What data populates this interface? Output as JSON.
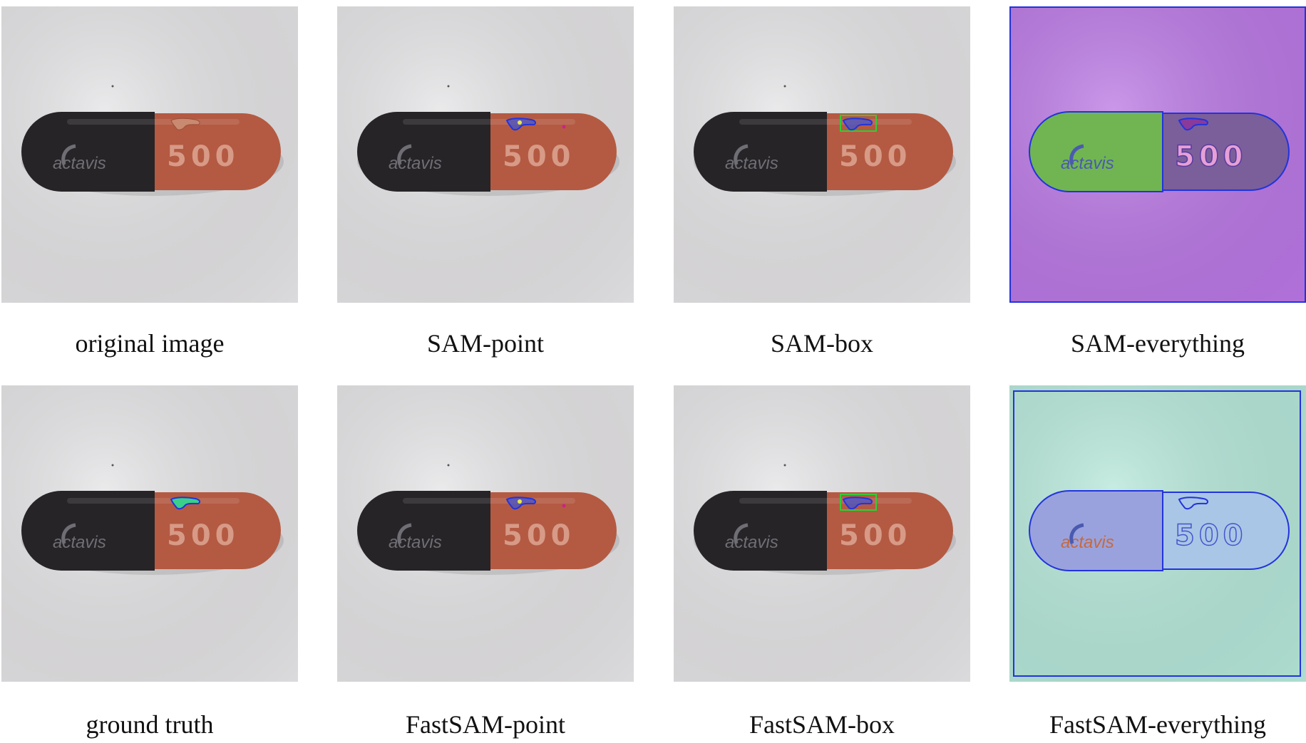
{
  "panels": [
    {
      "caption": "original image",
      "background": "#e3e2e4",
      "overlay": "none",
      "mask": "none"
    },
    {
      "caption": "SAM-point",
      "background": "#e3e2e4",
      "overlay": "none",
      "mask": "outline",
      "point": true
    },
    {
      "caption": "SAM-box",
      "background": "#e3e2e4",
      "overlay": "none",
      "mask": "outline",
      "box": true
    },
    {
      "caption": "SAM-everything",
      "background": "#b875e3",
      "overlay": "sam-everything"
    },
    {
      "caption": "ground truth",
      "background": "#e3e2e4",
      "overlay": "none",
      "mask": "filled"
    },
    {
      "caption": "FastSAM-point",
      "background": "#e3e2e4",
      "overlay": "none",
      "mask": "outline",
      "point": true
    },
    {
      "caption": "FastSAM-box",
      "background": "#e3e2e4",
      "overlay": "none",
      "mask": "outline",
      "box": true
    },
    {
      "caption": "FastSAM-everything",
      "background": "#b4e6d8",
      "overlay": "fastsam-everything"
    }
  ],
  "capsule": {
    "brand": "actavis",
    "number": "500",
    "cap_color": "#262427",
    "body_color": "#b45a42"
  },
  "colors": {
    "mask_outline": "#2233dd",
    "mask_fill": "#4455cc",
    "gt_fill": "#3ad08a",
    "box": "#33cc33",
    "point": "#cc2288"
  }
}
